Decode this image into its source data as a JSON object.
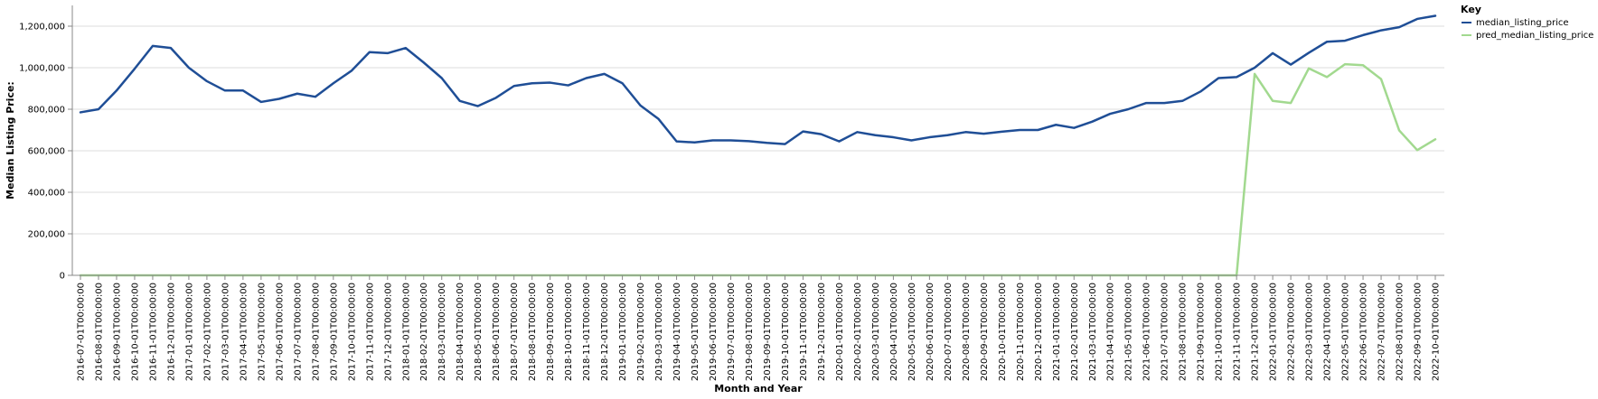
{
  "chart_data": {
    "type": "line",
    "xlabel": "Month and Year",
    "ylabel": "Median Listing Price:",
    "ylim": [
      0,
      1300000
    ],
    "y_ticks": [
      0,
      200000,
      400000,
      600000,
      800000,
      1000000,
      1200000
    ],
    "y_tick_labels": [
      "0",
      "200,000",
      "400,000",
      "600,000",
      "800,000",
      "1,000,000",
      "1,200,000"
    ],
    "grid": true,
    "legend": {
      "title": "Key",
      "position": "top-right"
    },
    "x": [
      "2016-07-01T00:00:00",
      "2016-08-01T00:00:00",
      "2016-09-01T00:00:00",
      "2016-10-01T00:00:00",
      "2016-11-01T00:00:00",
      "2016-12-01T00:00:00",
      "2017-01-01T00:00:00",
      "2017-02-01T00:00:00",
      "2017-03-01T00:00:00",
      "2017-04-01T00:00:00",
      "2017-05-01T00:00:00",
      "2017-06-01T00:00:00",
      "2017-07-01T00:00:00",
      "2017-08-01T00:00:00",
      "2017-09-01T00:00:00",
      "2017-10-01T00:00:00",
      "2017-11-01T00:00:00",
      "2017-12-01T00:00:00",
      "2018-01-01T00:00:00",
      "2018-02-01T00:00:00",
      "2018-03-01T00:00:00",
      "2018-04-01T00:00:00",
      "2018-05-01T00:00:00",
      "2018-06-01T00:00:00",
      "2018-07-01T00:00:00",
      "2018-08-01T00:00:00",
      "2018-09-01T00:00:00",
      "2018-10-01T00:00:00",
      "2018-11-01T00:00:00",
      "2018-12-01T00:00:00",
      "2019-01-01T00:00:00",
      "2019-02-01T00:00:00",
      "2019-03-01T00:00:00",
      "2019-04-01T00:00:00",
      "2019-05-01T00:00:00",
      "2019-06-01T00:00:00",
      "2019-07-01T00:00:00",
      "2019-08-01T00:00:00",
      "2019-09-01T00:00:00",
      "2019-10-01T00:00:00",
      "2019-11-01T00:00:00",
      "2019-12-01T00:00:00",
      "2020-01-01T00:00:00",
      "2020-02-01T00:00:00",
      "2020-03-01T00:00:00",
      "2020-04-01T00:00:00",
      "2020-05-01T00:00:00",
      "2020-06-01T00:00:00",
      "2020-07-01T00:00:00",
      "2020-08-01T00:00:00",
      "2020-09-01T00:00:00",
      "2020-10-01T00:00:00",
      "2020-11-01T00:00:00",
      "2020-12-01T00:00:00",
      "2021-01-01T00:00:00",
      "2021-02-01T00:00:00",
      "2021-03-01T00:00:00",
      "2021-04-01T00:00:00",
      "2021-05-01T00:00:00",
      "2021-06-01T00:00:00",
      "2021-07-01T00:00:00",
      "2021-08-01T00:00:00",
      "2021-09-01T00:00:00",
      "2021-10-01T00:00:00",
      "2021-11-01T00:00:00",
      "2021-12-01T00:00:00",
      "2022-01-01T00:00:00",
      "2022-02-01T00:00:00",
      "2022-03-01T00:00:00",
      "2022-04-01T00:00:00",
      "2022-05-01T00:00:00",
      "2022-06-01T00:00:00",
      "2022-07-01T00:00:00",
      "2022-08-01T00:00:00",
      "2022-09-01T00:00:00",
      "2022-10-01T00:00:00"
    ],
    "series": [
      {
        "name": "median_listing_price",
        "color": "#1f4e96",
        "values": [
          785000,
          800000,
          890000,
          995000,
          1105000,
          1095000,
          1000000,
          935000,
          890000,
          890000,
          835000,
          850000,
          875000,
          860000,
          925000,
          985000,
          1075000,
          1070000,
          1095000,
          1025000,
          950000,
          840000,
          815000,
          855000,
          912000,
          925000,
          928000,
          915000,
          950000,
          970000,
          925000,
          818000,
          753000,
          645000,
          640000,
          650000,
          650000,
          646000,
          638000,
          632000,
          693000,
          680000,
          645000,
          690000,
          675000,
          665000,
          650000,
          665000,
          675000,
          690000,
          682000,
          692000,
          700000,
          700000,
          725000,
          710000,
          740000,
          778000,
          800000,
          830000,
          830000,
          840000,
          885000,
          950000,
          955000,
          1000000,
          1070000,
          1015000,
          1072000,
          1125000,
          1130000,
          1157000,
          1180000,
          1195000,
          1235000,
          1250000
        ]
      },
      {
        "name": "pred_median_listing_price",
        "color": "#a2d98f",
        "values": [
          0,
          0,
          0,
          0,
          0,
          0,
          0,
          0,
          0,
          0,
          0,
          0,
          0,
          0,
          0,
          0,
          0,
          0,
          0,
          0,
          0,
          0,
          0,
          0,
          0,
          0,
          0,
          0,
          0,
          0,
          0,
          0,
          0,
          0,
          0,
          0,
          0,
          0,
          0,
          0,
          0,
          0,
          0,
          0,
          0,
          0,
          0,
          0,
          0,
          0,
          0,
          0,
          0,
          0,
          0,
          0,
          0,
          0,
          0,
          0,
          0,
          0,
          0,
          0,
          0,
          970000,
          840000,
          830000,
          997000,
          955000,
          1017000,
          1012000,
          945000,
          698000,
          603000,
          655000
        ]
      }
    ]
  }
}
